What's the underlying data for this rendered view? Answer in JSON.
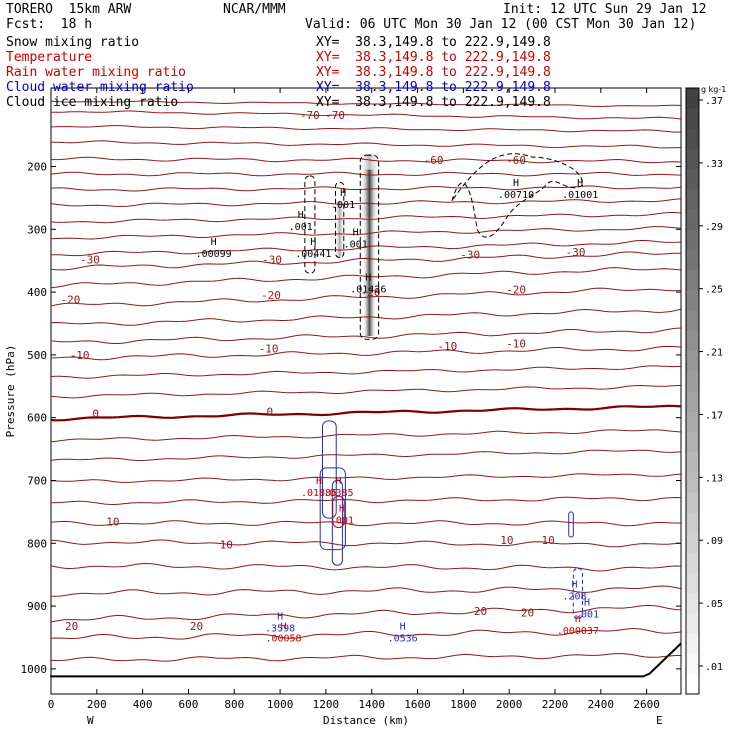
{
  "header": {
    "model": "TORERO",
    "resolution": "15km ARW",
    "center": "NCAR/MMM",
    "init": "Init: 12 UTC Sun 29 Jan 12",
    "fcst_label": "Fcst:",
    "fcst_value": "18 h",
    "valid": "Valid: 06 UTC Mon 30 Jan 12 (00 CST Mon 30 Jan 12)"
  },
  "legend_lines": [
    {
      "name": "Snow mixing ratio",
      "color": "#000000",
      "xy": "XY=  38.3,149.8 to 222.9,149.8"
    },
    {
      "name": "Temperature",
      "color": "#cc0000",
      "xy": "XY=  38.3,149.8 to 222.9,149.8"
    },
    {
      "name": "Rain water mixing ratio",
      "color": "#cc0000",
      "xy": "XY=  38.3,149.8 to 222.9,149.8"
    },
    {
      "name": "Cloud water mixing ratio",
      "color": "#0000cc",
      "xy": "XY=  38.3,149.8 to 222.9,149.8"
    },
    {
      "name": "Cloud ice mixing ratio",
      "color": "#000000",
      "xy": "XY=  38.3,149.8 to 222.9,149.8"
    }
  ],
  "colors": {
    "temperature": "#8b1a1a",
    "zero_isotherm": "#7a0000",
    "cloud_water": "#1a2ecc",
    "rain": "#cc0000",
    "terrain": "#000000"
  },
  "chart_data": {
    "type": "cross-section",
    "xlabel": "Distance (km)",
    "ylabel": "Pressure (hPa)",
    "xlim": [
      0,
      2750
    ],
    "ylim": [
      1040,
      75
    ],
    "x_ticks": [
      0,
      200,
      400,
      600,
      800,
      1000,
      1200,
      1400,
      1600,
      1800,
      2000,
      2200,
      2400,
      2600
    ],
    "y_ticks": [
      200,
      300,
      400,
      500,
      600,
      700,
      800,
      900,
      1000
    ],
    "west_label": "W",
    "east_label": "E",
    "colorbar": {
      "unit": "g kg-1",
      "levels": [
        ".01",
        ".05",
        ".09",
        ".13",
        ".17",
        ".21",
        ".25",
        ".29",
        ".33",
        ".37"
      ]
    },
    "isotherm_labels": [
      {
        "text": "-70",
        "x": 1130,
        "p": 118
      },
      {
        "text": "-70",
        "x": 1240,
        "p": 118
      },
      {
        "text": "-60",
        "x": 1670,
        "p": 190
      },
      {
        "text": "-60",
        "x": 2030,
        "p": 190
      },
      {
        "text": "-30",
        "x": 170,
        "p": 348
      },
      {
        "text": "-30",
        "x": 965,
        "p": 348
      },
      {
        "text": "-30",
        "x": 1830,
        "p": 340
      },
      {
        "text": "-30",
        "x": 2290,
        "p": 336
      },
      {
        "text": "-20",
        "x": 85,
        "p": 412
      },
      {
        "text": "-20",
        "x": 960,
        "p": 405
      },
      {
        "text": "-20",
        "x": 1395,
        "p": 400
      },
      {
        "text": "-20",
        "x": 2030,
        "p": 396
      },
      {
        "text": "-10",
        "x": 125,
        "p": 500
      },
      {
        "text": "-10",
        "x": 950,
        "p": 490
      },
      {
        "text": "-10",
        "x": 1730,
        "p": 486
      },
      {
        "text": "-10",
        "x": 2030,
        "p": 482
      },
      {
        "text": "0",
        "x": 195,
        "p": 593
      },
      {
        "text": "0",
        "x": 955,
        "p": 590
      },
      {
        "text": "10",
        "x": 270,
        "p": 765
      },
      {
        "text": "10",
        "x": 765,
        "p": 802
      },
      {
        "text": "10",
        "x": 1990,
        "p": 795
      },
      {
        "text": "10",
        "x": 2170,
        "p": 795
      },
      {
        "text": "20",
        "x": 90,
        "p": 932
      },
      {
        "text": "20",
        "x": 635,
        "p": 932
      },
      {
        "text": "20",
        "x": 1875,
        "p": 908
      },
      {
        "text": "20",
        "x": 2080,
        "p": 910
      }
    ],
    "maxima_labels": [
      {
        "text": ".00099",
        "x": 710,
        "p": 338,
        "color": "black"
      },
      {
        "text": ".00441",
        "x": 1145,
        "p": 338,
        "color": "black"
      },
      {
        "text": ".001",
        "x": 1275,
        "p": 260,
        "color": "black"
      },
      {
        "text": ".001",
        "x": 1090,
        "p": 295,
        "color": "black"
      },
      {
        "text": ".001",
        "x": 1330,
        "p": 323,
        "color": "black"
      },
      {
        "text": ".01426",
        "x": 1385,
        "p": 394,
        "color": "black"
      },
      {
        "text": ".00710",
        "x": 2030,
        "p": 244,
        "color": "black"
      },
      {
        "text": ".01001",
        "x": 2310,
        "p": 244,
        "color": "black"
      },
      {
        "text": ".01885",
        "x": 1170,
        "p": 718,
        "color": "rain"
      },
      {
        "text": ".0385",
        "x": 1255,
        "p": 718,
        "color": "rain"
      },
      {
        "text": ".001",
        "x": 1270,
        "p": 762,
        "color": "rain"
      },
      {
        "text": ".3598",
        "x": 1000,
        "p": 934,
        "color": "cloud"
      },
      {
        "text": ".00058",
        "x": 1015,
        "p": 950,
        "color": "rain"
      },
      {
        "text": ".0536",
        "x": 1535,
        "p": 950,
        "color": "cloud"
      },
      {
        "text": ".208",
        "x": 2285,
        "p": 883,
        "color": "cloud"
      },
      {
        "text": ".001",
        "x": 2340,
        "p": 912,
        "color": "cloud"
      },
      {
        "text": ".000037",
        "x": 2300,
        "p": 938,
        "color": "rain"
      }
    ]
  }
}
